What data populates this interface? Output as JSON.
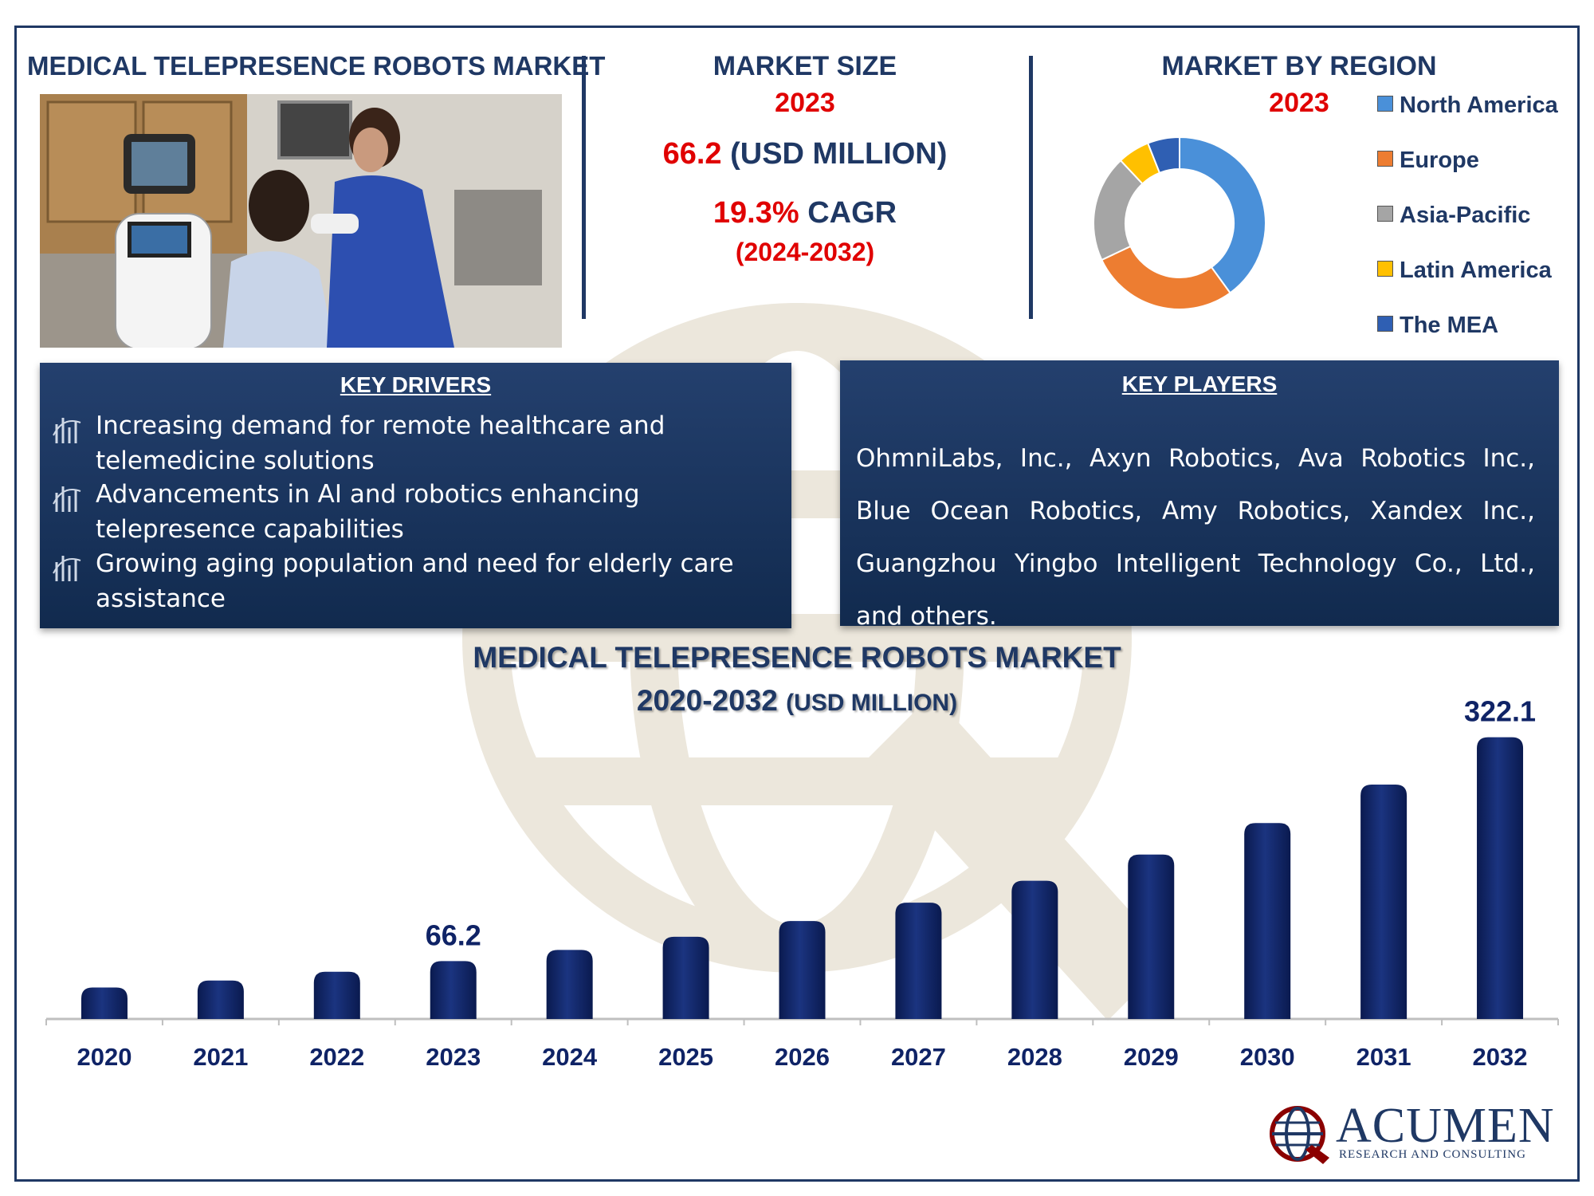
{
  "header_left": {
    "title": "MEDICAL TELEPRESENCE ROBOTS MARKET"
  },
  "market_size": {
    "title": "MARKET SIZE",
    "year": "2023",
    "value": "66.2",
    "unit": "(USD MILLION)",
    "cagr_value": "19.3%",
    "cagr_label": "CAGR",
    "cagr_period": "(2024-2032)"
  },
  "region": {
    "title": "MARKET BY REGION",
    "year": "2023",
    "segments": [
      {
        "name": "North America",
        "share": 0.4,
        "color": "#4a90d9"
      },
      {
        "name": "Europe",
        "share": 0.28,
        "color": "#ed7d31"
      },
      {
        "name": "Asia-Pacific",
        "share": 0.2,
        "color": "#a5a5a5"
      },
      {
        "name": "Latin America",
        "share": 0.06,
        "color": "#ffc000"
      },
      {
        "name": "The MEA",
        "share": 0.06,
        "color": "#2f5fb3"
      }
    ]
  },
  "key_drivers": {
    "title": "KEY DRIVERS",
    "items": [
      "Increasing demand for remote healthcare and telemedicine solutions",
      "Advancements in AI and robotics enhancing telepresence capabilities",
      "Growing aging population and need for elderly care assistance"
    ]
  },
  "key_players": {
    "title": "KEY PLAYERS",
    "text": "OhmniLabs, Inc., Axyn Robotics, Ava Robotics Inc., Blue Ocean Robotics, Amy Robotics, Xandex Inc., Guangzhou Yingbo Intelligent Technology Co., Ltd., and others."
  },
  "chart_title": {
    "line1": "MEDICAL TELEPRESENCE ROBOTS MARKET",
    "line2": "2020-2032",
    "unit": "(USD MILLION)"
  },
  "chart_data": {
    "type": "bar",
    "title": "MEDICAL TELEPRESENCE ROBOTS MARKET 2020-2032 (USD MILLION)",
    "categories": [
      "2020",
      "2021",
      "2022",
      "2023",
      "2024",
      "2025",
      "2026",
      "2027",
      "2028",
      "2029",
      "2030",
      "2031",
      "2032"
    ],
    "values": [
      36,
      44,
      54,
      66.2,
      79,
      94,
      112,
      133,
      158,
      188,
      224,
      268,
      322.1
    ],
    "data_labels": {
      "2023": "66.2",
      "2032": "322.1"
    },
    "ylim": [
      0,
      340
    ],
    "bar_color": "#0f2366",
    "grid": false
  },
  "brand": {
    "name": "ACUMEN",
    "tagline": "RESEARCH AND CONSULTING"
  }
}
